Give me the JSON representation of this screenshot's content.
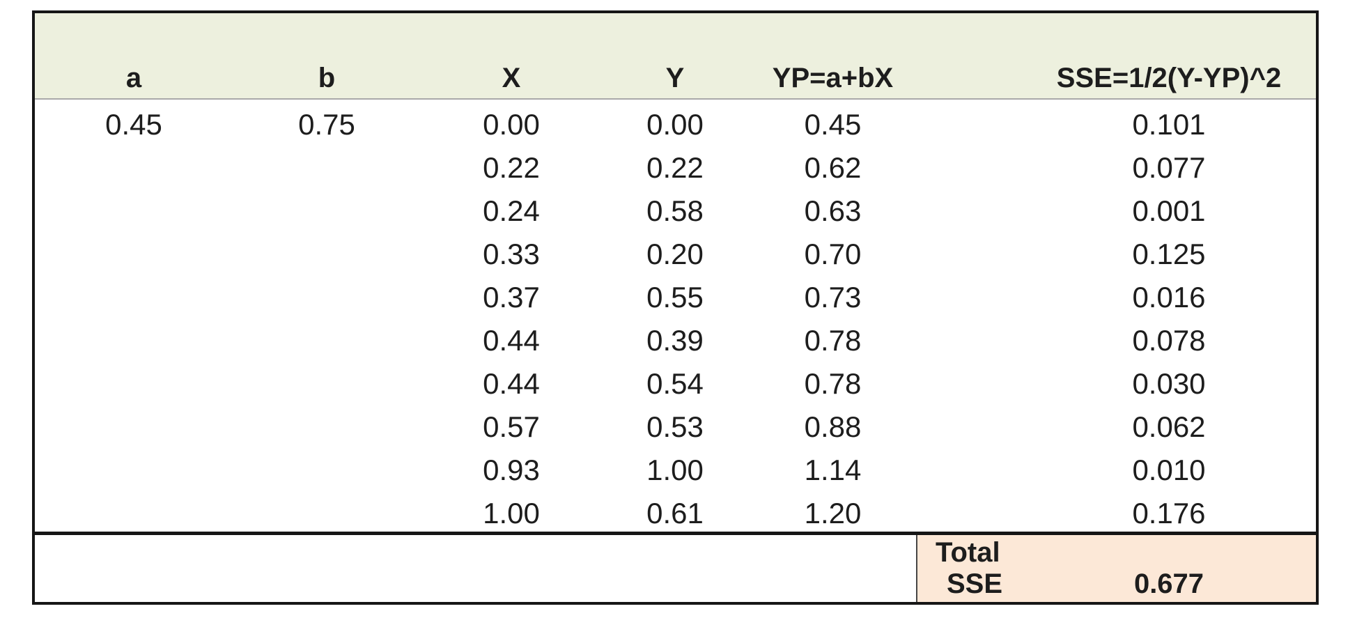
{
  "table": {
    "column_headers": [
      "a",
      "b",
      "X",
      "Y",
      "YP=a+bX",
      "SSE=1/2(Y-YP)^2"
    ],
    "rows": [
      [
        "0.45",
        "0.75",
        "0.00",
        "0.00",
        "0.45",
        "0.101"
      ],
      [
        "",
        "",
        "0.22",
        "0.22",
        "0.62",
        "0.077"
      ],
      [
        "",
        "",
        "0.24",
        "0.58",
        "0.63",
        "0.001"
      ],
      [
        "",
        "",
        "0.33",
        "0.20",
        "0.70",
        "0.125"
      ],
      [
        "",
        "",
        "0.37",
        "0.55",
        "0.73",
        "0.016"
      ],
      [
        "",
        "",
        "0.44",
        "0.39",
        "0.78",
        "0.078"
      ],
      [
        "",
        "",
        "0.44",
        "0.54",
        "0.78",
        "0.030"
      ],
      [
        "",
        "",
        "0.57",
        "0.53",
        "0.88",
        "0.062"
      ],
      [
        "",
        "",
        "0.93",
        "1.00",
        "1.14",
        "0.010"
      ],
      [
        "",
        "",
        "1.00",
        "0.61",
        "1.20",
        "0.176"
      ]
    ],
    "total": {
      "label_line1": "Total",
      "label_line2": "SSE",
      "value": "0.677"
    }
  },
  "colors": {
    "header_bg": "#edf0de",
    "total_bg": "#fce8d7",
    "outer_border": "#161616",
    "header_divider": "#a9a9a9",
    "total_divider": "#454545",
    "text": "#1d1d1d"
  }
}
